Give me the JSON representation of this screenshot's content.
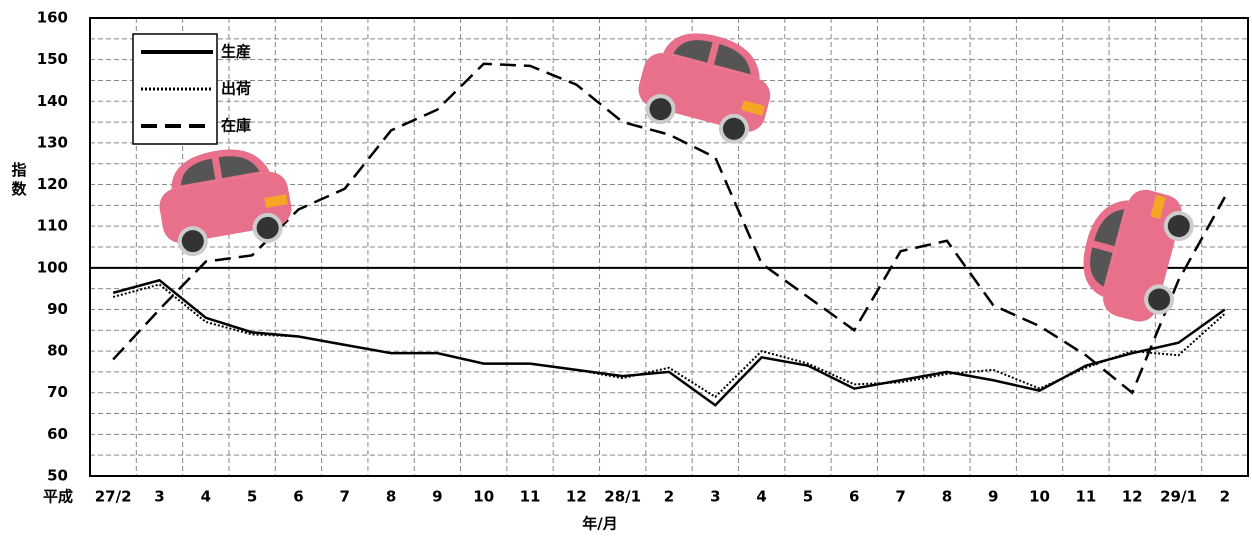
{
  "chart_data": {
    "type": "line",
    "x_axis_prefix": "平成",
    "xlabel": "年/月",
    "ylabel": "指数",
    "categories": [
      "27/2",
      "3",
      "4",
      "5",
      "6",
      "7",
      "8",
      "9",
      "10",
      "11",
      "12",
      "28/1",
      "2",
      "3",
      "4",
      "5",
      "6",
      "7",
      "8",
      "9",
      "10",
      "11",
      "12",
      "29/1",
      "2"
    ],
    "series": [
      {
        "name": "生産",
        "color": "#000000",
        "style": "solid",
        "values": [
          94,
          97,
          88,
          84.5,
          83.5,
          81.5,
          79.5,
          79.5,
          77,
          77,
          75.5,
          74,
          75,
          67,
          78.5,
          76.5,
          71,
          73,
          75,
          73,
          70.5,
          76.5,
          79.5,
          82,
          90
        ]
      },
      {
        "name": "出荷",
        "color": "#000000",
        "style": "dotted",
        "values": [
          93,
          96,
          87,
          84,
          83.5,
          81.5,
          79.5,
          79.5,
          77,
          77,
          75.5,
          73.5,
          76,
          69,
          80,
          77,
          72,
          72.5,
          74.5,
          75.5,
          71,
          76,
          80,
          79,
          89
        ]
      },
      {
        "name": "在庫",
        "color": "#000000",
        "style": "dashed",
        "values": [
          78,
          90,
          101.5,
          103,
          114,
          119,
          133,
          138,
          149,
          148.5,
          144,
          135,
          132,
          126.5,
          101,
          93,
          85,
          104,
          106.5,
          91,
          86,
          79,
          70,
          97,
          117
        ]
      }
    ],
    "ylim": [
      50,
      160
    ],
    "yticks": [
      50,
      60,
      70,
      80,
      90,
      100,
      110,
      120,
      130,
      140,
      150,
      160
    ],
    "reference_line": 100,
    "grid": true,
    "legend_position": "top-left"
  }
}
